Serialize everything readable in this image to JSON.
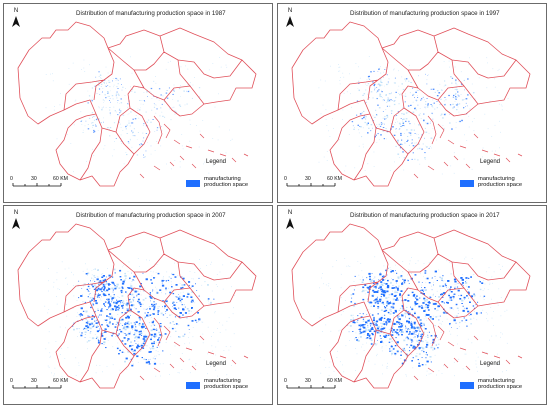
{
  "panels": [
    {
      "title": "Distribution of manufacturing production space in 1987",
      "density": 0.25
    },
    {
      "title": "Distribution of manufacturing production space in 1997",
      "density": 0.45
    },
    {
      "title": "Distribution of manufacturing production space in 2007",
      "density": 0.95
    },
    {
      "title": "Distribution of manufacturing production space in 2017",
      "density": 1.0
    }
  ],
  "north_label": "N",
  "scale": {
    "ticks": [
      "0",
      "30",
      "60 KM"
    ]
  },
  "legend": {
    "title": "Legend",
    "item_label": "manufacturing production space"
  },
  "colors": {
    "boundary": "#e0505a",
    "production_space": "#1f6fff",
    "frame": "#6b6b6b"
  }
}
